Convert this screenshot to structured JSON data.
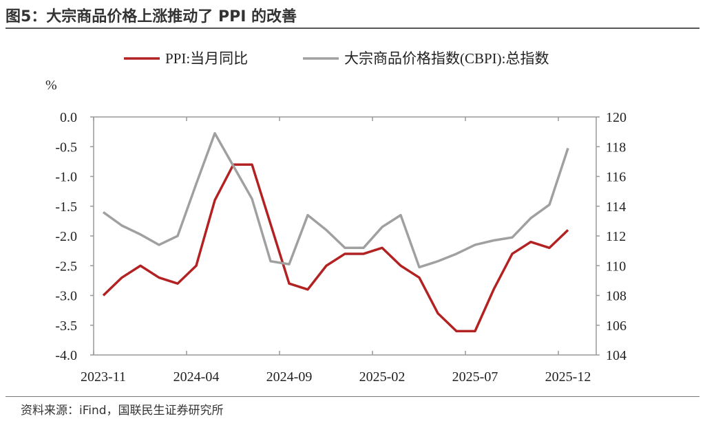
{
  "title": "图5：大宗商品价格上涨推动了 PPI 的改善",
  "source": "资料来源：iFind，国联民生证券研究所",
  "chart_data": {
    "type": "line",
    "title": "",
    "left_axis_label": "%",
    "x": [
      "2023-11",
      "2023-12",
      "2024-01",
      "2024-02",
      "2024-03",
      "2024-04",
      "2024-05",
      "2024-06",
      "2024-07",
      "2024-08",
      "2024-09",
      "2024-10",
      "2024-11",
      "2024-12",
      "2025-01",
      "2025-02",
      "2025-03",
      "2025-04",
      "2025-05",
      "2025-06",
      "2025-07",
      "2025-08",
      "2025-09",
      "2025-10",
      "2025-11",
      "2025-12"
    ],
    "x_tick_labels": [
      "2023-11",
      "2024-04",
      "2024-09",
      "2025-02",
      "2025-07",
      "2025-12"
    ],
    "left_ylim": [
      -4.0,
      0.0
    ],
    "left_ticks": [
      "0.0",
      "-0.5",
      "-1.0",
      "-1.5",
      "-2.0",
      "-2.5",
      "-3.0",
      "-3.5",
      "-4.0"
    ],
    "right_ylim": [
      104,
      120
    ],
    "right_ticks": [
      "120",
      "118",
      "116",
      "114",
      "112",
      "110",
      "108",
      "106",
      "104"
    ],
    "grid": false,
    "legend_position": "top",
    "series": [
      {
        "name": "PPI:当月同比",
        "axis": "left",
        "color": "#b22222",
        "values": [
          -3.0,
          -2.7,
          -2.5,
          -2.7,
          -2.8,
          -2.5,
          -1.4,
          -0.8,
          -0.8,
          -1.8,
          -2.8,
          -2.9,
          -2.5,
          -2.3,
          -2.3,
          -2.2,
          -2.5,
          -2.7,
          -3.3,
          -3.6,
          -3.6,
          -2.9,
          -2.3,
          -2.1,
          -2.2,
          -1.9
        ]
      },
      {
        "name": "大宗商品价格指数(CBPI):总指数",
        "axis": "right",
        "color": "#a0a0a0",
        "values": [
          113.6,
          112.7,
          112.1,
          111.4,
          112.0,
          115.5,
          118.9,
          116.7,
          114.5,
          110.3,
          110.1,
          113.4,
          112.4,
          111.2,
          111.2,
          112.6,
          113.4,
          109.9,
          110.3,
          110.8,
          111.4,
          111.7,
          111.9,
          113.2,
          114.1,
          117.9
        ]
      }
    ]
  }
}
